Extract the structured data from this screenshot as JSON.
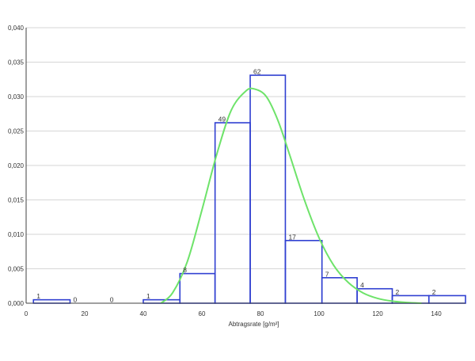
{
  "chart_data": {
    "type": "bar",
    "title": "",
    "xlabel": "Abtragsrate [g/m²]",
    "ylabel": "",
    "xlim": [
      0,
      150
    ],
    "ylim": [
      0,
      0.04
    ],
    "grid": true,
    "x_ticks": [
      "0",
      "20",
      "40",
      "60",
      "80",
      "100",
      "120",
      "140"
    ],
    "x_tick_values": [
      0,
      20,
      40,
      60,
      80,
      100,
      120,
      140
    ],
    "y_ticks": [
      "0,000",
      "0,005",
      "0,010",
      "0,015",
      "0,020",
      "0,025",
      "0,030",
      "0,035",
      "0,040"
    ],
    "y_tick_values": [
      0,
      0.005,
      0.01,
      0.015,
      0.02,
      0.025,
      0.03,
      0.035,
      0.04
    ],
    "bar_color": "#2f3fd1",
    "curve_color": "#6ee36a",
    "bins": [
      {
        "x0": 2.5,
        "x1": 15,
        "density": 0.0005,
        "count": "1"
      },
      {
        "x0": 15,
        "x1": 27.5,
        "density": 0,
        "count": "0"
      },
      {
        "x0": 27.5,
        "x1": 40,
        "density": 0,
        "count": "0"
      },
      {
        "x0": 40,
        "x1": 52.5,
        "density": 0.0005,
        "count": "1"
      },
      {
        "x0": 52.5,
        "x1": 64.5,
        "density": 0.0043,
        "count": "8"
      },
      {
        "x0": 64.5,
        "x1": 76.5,
        "density": 0.0262,
        "count": "49"
      },
      {
        "x0": 76.5,
        "x1": 88.5,
        "density": 0.0331,
        "count": "62"
      },
      {
        "x0": 88.5,
        "x1": 101,
        "density": 0.0091,
        "count": "17"
      },
      {
        "x0": 101,
        "x1": 113,
        "density": 0.0037,
        "count": "7"
      },
      {
        "x0": 113,
        "x1": 125,
        "density": 0.0021,
        "count": "4"
      },
      {
        "x0": 125,
        "x1": 137.5,
        "density": 0.0011,
        "count": "2"
      },
      {
        "x0": 137.5,
        "x1": 150,
        "density": 0.0011,
        "count": "2"
      }
    ],
    "fit_curve": {
      "type": "lognormal",
      "x": [
        46,
        50,
        55,
        60,
        65,
        70,
        75,
        78,
        82,
        86,
        90,
        95,
        100,
        105,
        110,
        115,
        120,
        125,
        130,
        135
      ],
      "y": [
        0,
        0.0015,
        0.006,
        0.0135,
        0.0215,
        0.028,
        0.0308,
        0.0311,
        0.03,
        0.0265,
        0.0215,
        0.015,
        0.0095,
        0.0055,
        0.003,
        0.0015,
        0.0007,
        0.0003,
        0.0001,
        0
      ]
    }
  }
}
